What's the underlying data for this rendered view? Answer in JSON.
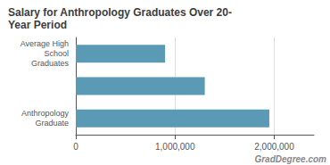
{
  "chart_data": {
    "type": "bar",
    "orientation": "horizontal",
    "title": "Salary for Anthropology Graduates Over 20-\nYear Period",
    "categories": [
      "Anthropology\nGraduate",
      null,
      "Average High\nSchool\nGraduates"
    ],
    "values": [
      1950000,
      1300000,
      900000
    ],
    "color": "#5b9ab5",
    "xlim": [
      0,
      2400000
    ],
    "xticks": [
      0,
      {
        "value": 1000000,
        "label": "1,000,000"
      },
      {
        "value": 2000000,
        "label": "2,000,000"
      }
    ],
    "grid": true,
    "annotations": [
      "GradDegree.com"
    ]
  }
}
